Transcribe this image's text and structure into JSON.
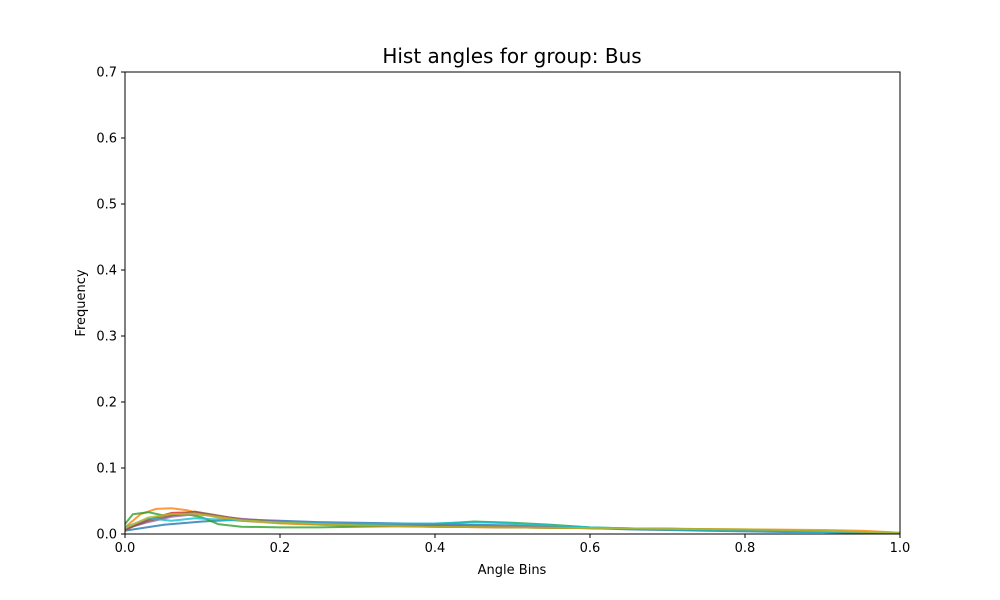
{
  "chart_data": {
    "type": "line",
    "title": "Hist angles for group: Bus",
    "xlabel": "Angle Bins",
    "ylabel": "Frequency",
    "xlim": [
      0,
      1.0
    ],
    "ylim": [
      0,
      0.7
    ],
    "x_ticks": [
      "0.0",
      "0.2",
      "0.4",
      "0.6",
      "0.8",
      "1.0"
    ],
    "y_ticks": [
      "0.0",
      "0.1",
      "0.2",
      "0.3",
      "0.4",
      "0.5",
      "0.6",
      "0.7"
    ],
    "grid": false,
    "legend": "none",
    "series": [
      {
        "color": "#1f77b4",
        "x": [
          0.0,
          0.05,
          0.1,
          0.15,
          0.2,
          0.25,
          0.3,
          0.35,
          0.4,
          0.45,
          0.5,
          0.55,
          0.6,
          0.65,
          0.7,
          0.75,
          0.8,
          0.85,
          0.9,
          0.95,
          1.0
        ],
        "y": [
          0.005,
          0.014,
          0.019,
          0.022,
          0.02,
          0.018,
          0.017,
          0.016,
          0.015,
          0.014,
          0.013,
          0.011,
          0.009,
          0.007,
          0.006,
          0.005,
          0.004,
          0.003,
          0.003,
          0.002,
          0.001
        ]
      },
      {
        "color": "#ff7f0e",
        "x": [
          0.0,
          0.02,
          0.04,
          0.06,
          0.08,
          0.1,
          0.12,
          0.15,
          0.2,
          0.25,
          0.3,
          0.4,
          0.5,
          0.6,
          0.7,
          0.8,
          0.9,
          0.95,
          1.0
        ],
        "y": [
          0.01,
          0.03,
          0.038,
          0.039,
          0.036,
          0.03,
          0.025,
          0.02,
          0.016,
          0.014,
          0.012,
          0.011,
          0.01,
          0.009,
          0.008,
          0.007,
          0.006,
          0.005,
          0.002
        ]
      },
      {
        "color": "#2ca02c",
        "x": [
          0.0,
          0.01,
          0.03,
          0.05,
          0.08,
          0.1,
          0.12,
          0.15,
          0.2,
          0.25,
          0.3,
          0.35,
          0.4,
          0.45,
          0.5,
          0.55,
          0.6,
          0.7,
          0.8,
          0.9,
          1.0
        ],
        "y": [
          0.015,
          0.03,
          0.033,
          0.028,
          0.03,
          0.025,
          0.015,
          0.011,
          0.01,
          0.01,
          0.011,
          0.012,
          0.015,
          0.019,
          0.017,
          0.014,
          0.01,
          0.007,
          0.005,
          0.004,
          0.001
        ]
      },
      {
        "color": "#d62728",
        "x": [
          0.0,
          0.03,
          0.06,
          0.09,
          0.12,
          0.15,
          0.2,
          0.3,
          0.4,
          0.5,
          0.6,
          0.7,
          0.8,
          0.9,
          1.0
        ],
        "y": [
          0.006,
          0.022,
          0.032,
          0.033,
          0.027,
          0.022,
          0.017,
          0.013,
          0.011,
          0.01,
          0.009,
          0.008,
          0.006,
          0.004,
          0.001
        ]
      },
      {
        "color": "#9467bd",
        "x": [
          0.0,
          0.03,
          0.06,
          0.09,
          0.12,
          0.15,
          0.2,
          0.3,
          0.4,
          0.5,
          0.6,
          0.7,
          0.8,
          0.9,
          1.0
        ],
        "y": [
          0.008,
          0.018,
          0.026,
          0.03,
          0.027,
          0.023,
          0.019,
          0.015,
          0.013,
          0.011,
          0.009,
          0.008,
          0.006,
          0.004,
          0.001
        ]
      },
      {
        "color": "#8c564b",
        "x": [
          0.0,
          0.03,
          0.06,
          0.09,
          0.12,
          0.15,
          0.2,
          0.3,
          0.4,
          0.5,
          0.6,
          0.7,
          0.8,
          0.9,
          1.0
        ],
        "y": [
          0.007,
          0.02,
          0.028,
          0.034,
          0.028,
          0.022,
          0.018,
          0.014,
          0.012,
          0.01,
          0.009,
          0.007,
          0.006,
          0.004,
          0.001
        ]
      },
      {
        "color": "#17becf",
        "x": [
          0.0,
          0.03,
          0.06,
          0.09,
          0.12,
          0.15,
          0.2,
          0.3,
          0.4,
          0.45,
          0.5,
          0.6,
          0.7,
          0.8,
          0.9,
          1.0
        ],
        "y": [
          0.01,
          0.024,
          0.02,
          0.024,
          0.022,
          0.02,
          0.018,
          0.015,
          0.016,
          0.018,
          0.016,
          0.01,
          0.007,
          0.005,
          0.003,
          0.001
        ]
      },
      {
        "color": "#bcbd22",
        "x": [
          0.0,
          0.03,
          0.06,
          0.09,
          0.12,
          0.15,
          0.2,
          0.3,
          0.4,
          0.5,
          0.6,
          0.7,
          0.8,
          0.9,
          1.0
        ],
        "y": [
          0.009,
          0.025,
          0.03,
          0.031,
          0.026,
          0.021,
          0.017,
          0.013,
          0.011,
          0.01,
          0.009,
          0.008,
          0.007,
          0.005,
          0.002
        ]
      }
    ]
  }
}
